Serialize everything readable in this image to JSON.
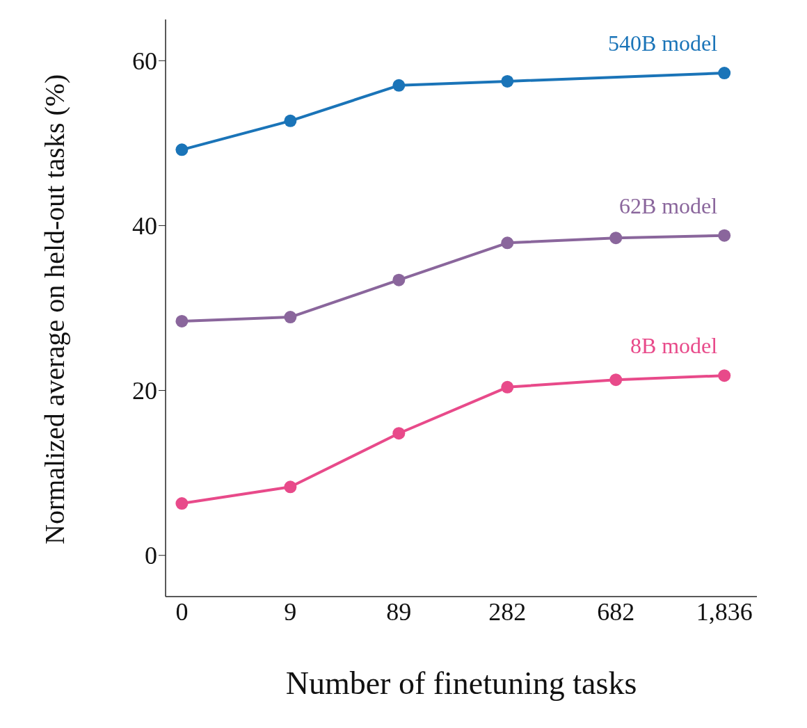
{
  "chart_data": {
    "type": "line",
    "xlabel": "Number of finetuning tasks",
    "ylabel": "Normalized average on held-out tasks (%)",
    "categories": [
      "0",
      "9",
      "89",
      "282",
      "682",
      "1,836"
    ],
    "series": [
      {
        "name": "540B model",
        "color": "#1a74b8",
        "values": [
          49.2,
          52.7,
          57.0,
          57.5,
          null,
          58.5
        ]
      },
      {
        "name": "62B model",
        "color": "#8a669c",
        "values": [
          28.4,
          28.9,
          33.4,
          37.9,
          38.5,
          38.8
        ]
      },
      {
        "name": "8B model",
        "color": "#e84a8a",
        "values": [
          6.3,
          8.3,
          14.8,
          20.4,
          21.3,
          21.8
        ]
      }
    ],
    "ylim": [
      -5,
      65
    ],
    "yticks": [
      0,
      20,
      40,
      60
    ],
    "grid": false,
    "legend": false,
    "marker": "circle",
    "line_style": "solid"
  }
}
